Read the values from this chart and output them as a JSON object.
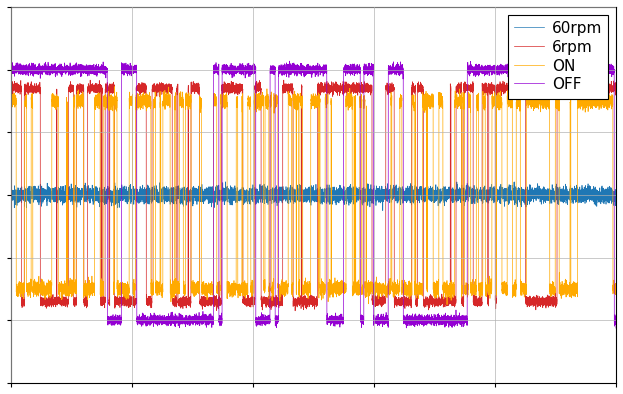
{
  "legend_labels": [
    "60rpm",
    "6rpm",
    "ON",
    "OFF"
  ],
  "line_colors": {
    "60rpm": "#1f77b4",
    "6rpm": "#d62728",
    "ON": "#ffaa00",
    "OFF": "#9400d3"
  },
  "n_samples": 10000,
  "seed": 42,
  "ylim": [
    -1.5,
    1.5
  ],
  "xlim": [
    0,
    10000
  ],
  "figsize": [
    6.23,
    3.94
  ],
  "dpi": 100,
  "background_color": "#ffffff",
  "grid_color": "#b0b0b0"
}
